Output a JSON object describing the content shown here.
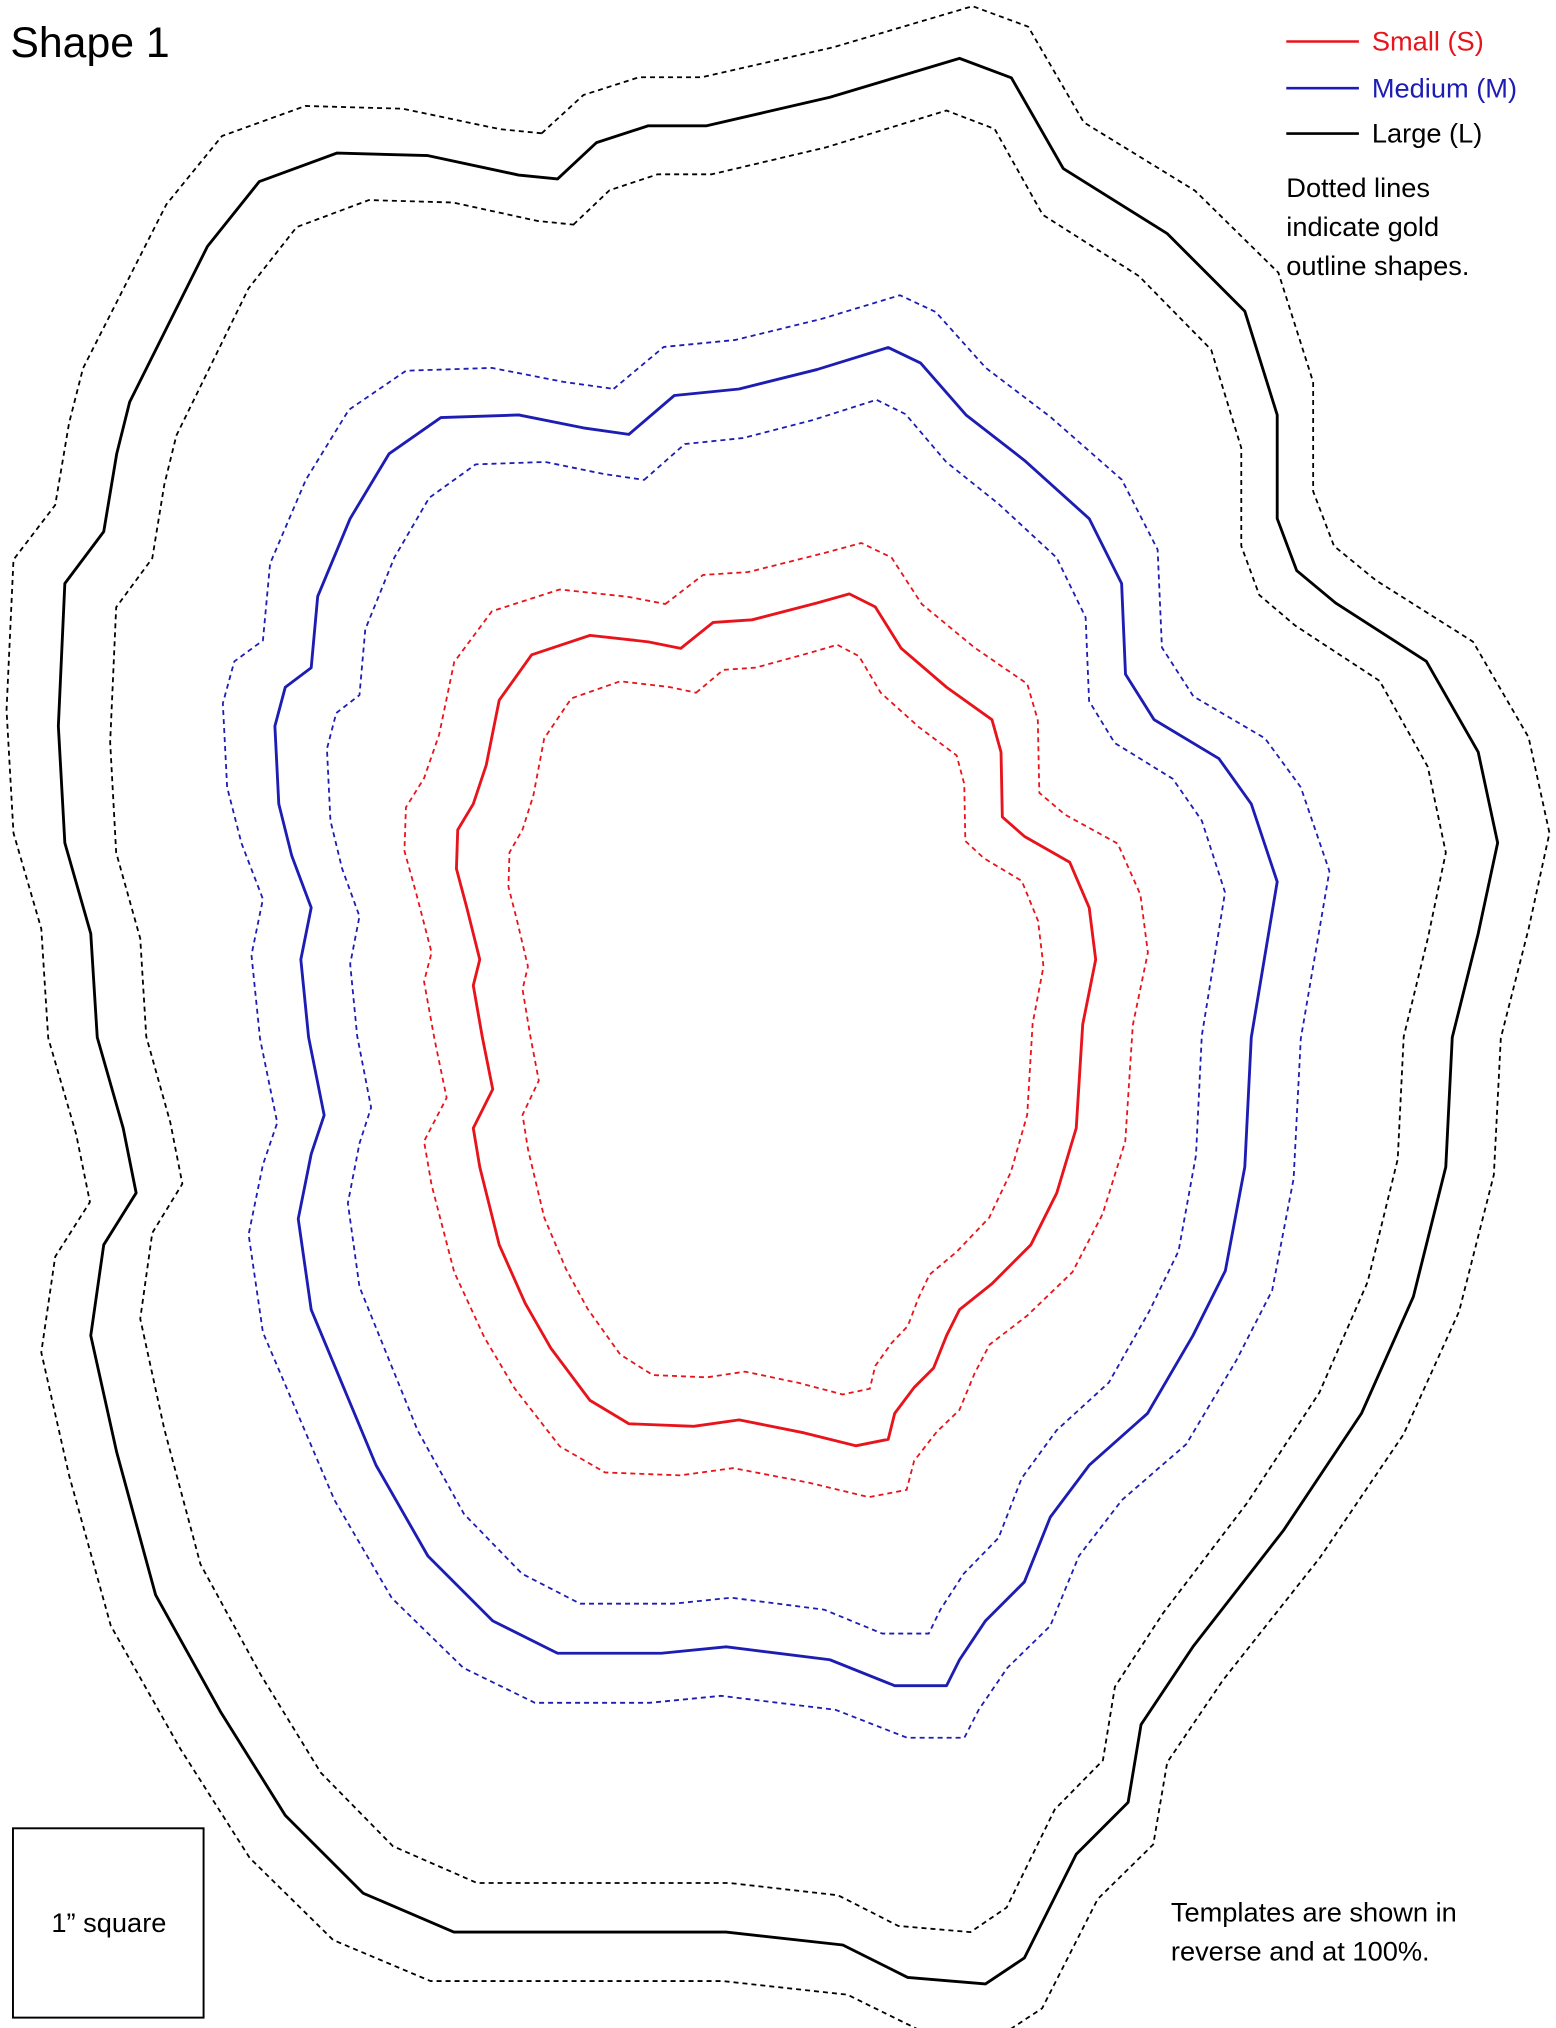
{
  "title": "Shape 1",
  "legend": [
    {
      "label": "Small (S)",
      "color": "#e8141b"
    },
    {
      "label": "Medium (M)",
      "color": "#1d1db3"
    },
    {
      "label": "Large (L)",
      "color": "#000000"
    }
  ],
  "note": [
    "Dotted lines",
    "indicate gold",
    "outline shapes."
  ],
  "scale_box": "1” square",
  "footer": [
    "Templates are shown in",
    "reverse and at 100%."
  ]
}
